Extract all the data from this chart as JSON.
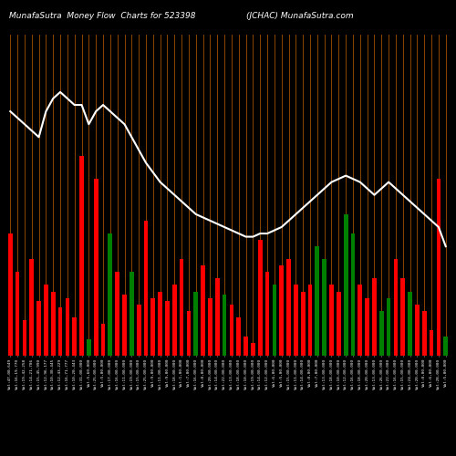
{
  "title_left": "MunafaSutra  Money Flow  Charts for 523398",
  "title_right": "(JCHAC) MunafaSutra.com",
  "background_color": "#000000",
  "bar_colors": [
    "red",
    "red",
    "red",
    "red",
    "red",
    "red",
    "red",
    "red",
    "red",
    "red",
    "red",
    "green",
    "red",
    "red",
    "green",
    "red",
    "red",
    "green",
    "red",
    "red",
    "red",
    "red",
    "red",
    "red",
    "red",
    "red",
    "green",
    "red",
    "red",
    "red",
    "green",
    "red",
    "red",
    "red",
    "red",
    "red",
    "red",
    "green",
    "red",
    "red",
    "red",
    "red",
    "red",
    "green",
    "green",
    "red",
    "red",
    "green",
    "green",
    "red",
    "red",
    "red",
    "green",
    "green",
    "red",
    "red",
    "green",
    "red",
    "red",
    "red",
    "red",
    "green"
  ],
  "bar_heights": [
    0.38,
    0.26,
    0.11,
    0.3,
    0.17,
    0.22,
    0.2,
    0.15,
    0.18,
    0.12,
    0.62,
    0.05,
    0.55,
    0.1,
    0.38,
    0.26,
    0.19,
    0.26,
    0.16,
    0.42,
    0.18,
    0.2,
    0.17,
    0.22,
    0.3,
    0.14,
    0.2,
    0.28,
    0.18,
    0.24,
    0.19,
    0.16,
    0.12,
    0.06,
    0.04,
    0.36,
    0.26,
    0.22,
    0.28,
    0.3,
    0.22,
    0.2,
    0.22,
    0.34,
    0.3,
    0.22,
    0.2,
    0.44,
    0.38,
    0.22,
    0.18,
    0.24,
    0.14,
    0.18,
    0.3,
    0.24,
    0.2,
    0.16,
    0.14,
    0.08,
    0.55,
    0.06
  ],
  "line_y": [
    0.76,
    0.74,
    0.72,
    0.7,
    0.68,
    0.76,
    0.8,
    0.82,
    0.8,
    0.78,
    0.78,
    0.72,
    0.76,
    0.78,
    0.76,
    0.74,
    0.72,
    0.68,
    0.64,
    0.6,
    0.57,
    0.54,
    0.52,
    0.5,
    0.48,
    0.46,
    0.44,
    0.43,
    0.42,
    0.41,
    0.4,
    0.39,
    0.38,
    0.37,
    0.37,
    0.38,
    0.38,
    0.39,
    0.4,
    0.42,
    0.44,
    0.46,
    0.48,
    0.5,
    0.52,
    0.54,
    0.55,
    0.56,
    0.55,
    0.54,
    0.52,
    0.5,
    0.52,
    0.54,
    0.52,
    0.5,
    0.48,
    0.46,
    0.44,
    0.42,
    0.4,
    0.34
  ],
  "tick_labels": [
    "Vol:47,00,649",
    "Vol:16,19,770",
    "Vol:19,42,258",
    "Vol:14,21,706",
    "Vol:15,45,990",
    "Vol:12,96,177",
    "Vol:10,30,445",
    "Vol:12,43,229",
    "Vol:16,71,777",
    "Vol:10,20,443",
    "Vol:31,00,000",
    "Vol:5,60,000",
    "Vol:25,00,000",
    "Vol:5,00,000",
    "Vol:17,00,000",
    "Vol:16,00,000",
    "Vol:11,00,000",
    "Vol:19,00,000",
    "Vol:15,00,000",
    "Vol:25,00,000",
    "Vol:9,00,000",
    "Vol:11,00,000",
    "Vol:9,00,000",
    "Vol:18,00,000",
    "Vol:1,00,000",
    "Vol:7,00,000",
    "Vol:16,00,000",
    "Vol:8,00,000",
    "Vol:20,00,000",
    "Vol:14,00,000",
    "Vol:22,00,000",
    "Vol:13,00,000",
    "Vol:18,00,000",
    "Vol:10,00,000",
    "Vol:19,00,000",
    "Vol:14,00,000",
    "Vol:12,00,000",
    "Vol:6,00,000",
    "Vol:5,00,000",
    "Vol:15,00,000",
    "Vol:11,00,000",
    "Vol:14,00,000",
    "Vol:8,00,000",
    "Vol:7,00,000",
    "Vol:13,00,000",
    "Vol:18,00,000",
    "Vol:10,00,000",
    "Vol:12,00,000",
    "Vol:16,00,000",
    "Vol:18,00,000",
    "Vol:20,00,000",
    "Vol:13,00,000",
    "Vol:26,00,000",
    "Vol:22,00,000",
    "Vol:16,00,000",
    "Vol:15,00,000",
    "Vol:24,00,000",
    "Vol:20,00,000",
    "Vol:8,00,000",
    "Vol:6,00,000",
    "Vol:28,00,000",
    "Vol:5,00,000"
  ],
  "vline_color": "#8B4500",
  "line_color": "#ffffff",
  "text_color": "#ffffff",
  "ylim": [
    0,
    1.0
  ],
  "bar_width": 0.6
}
